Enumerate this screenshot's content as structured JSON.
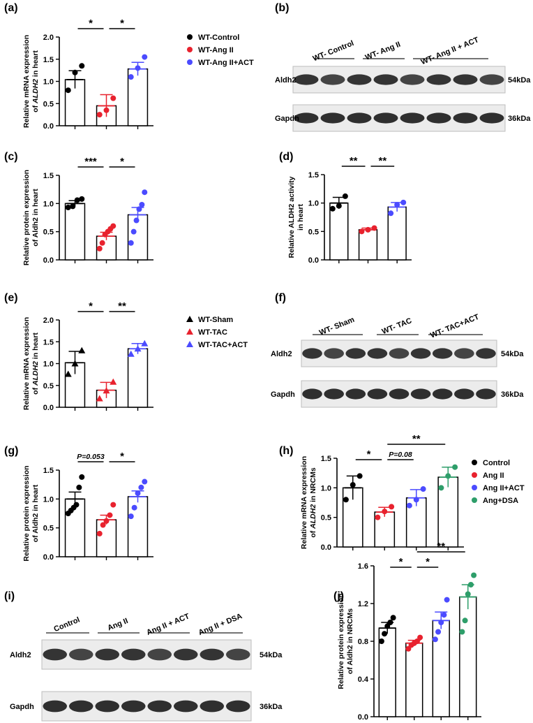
{
  "chart_data": [
    {
      "id": "a",
      "panel_label": "(a)",
      "type": "bar",
      "ylabel_lines": [
        [
          "Relative  mRNA expression",
          ""
        ],
        [
          "of ",
          "ALDH2",
          " in heart"
        ]
      ],
      "ylim": [
        0,
        2.0
      ],
      "yticks": [
        "0.0",
        "0.5",
        "1.0",
        "1.5",
        "2.0"
      ],
      "series": [
        {
          "name": "WT-Control",
          "color": "#000000",
          "marker": "circle",
          "mean": 1.04,
          "sem": 0.2,
          "points": [
            0.8,
            1.2,
            1.35
          ]
        },
        {
          "name": "WT-Ang II",
          "color": "#e8222e",
          "marker": "circle",
          "mean": 0.45,
          "sem": 0.25,
          "points": [
            0.25,
            0.35,
            0.62
          ]
        },
        {
          "name": "WT-Ang II+ACT",
          "color": "#4b4bff",
          "marker": "circle",
          "mean": 1.28,
          "sem": 0.15,
          "points": [
            1.1,
            1.3,
            1.55
          ]
        }
      ],
      "comparisons": [
        {
          "from": 0,
          "to": 1,
          "label": "*"
        },
        {
          "from": 1,
          "to": 2,
          "label": "*"
        }
      ]
    },
    {
      "id": "c",
      "panel_label": "(c)",
      "type": "bar",
      "ylabel_lines": [
        [
          "Relative  protein expression",
          ""
        ],
        [
          "of Aldh2 in heart",
          ""
        ]
      ],
      "ylim": [
        0,
        1.5
      ],
      "yticks": [
        "0.0",
        "0.5",
        "1.0",
        "1.5"
      ],
      "series": [
        {
          "name": "WT-Control",
          "color": "#000000",
          "marker": "circle",
          "mean": 1.0,
          "sem": 0.05,
          "points": [
            0.93,
            0.95,
            1.06,
            1.08
          ]
        },
        {
          "name": "WT-Ang II",
          "color": "#e8222e",
          "marker": "circle",
          "mean": 0.42,
          "sem": 0.07,
          "points": [
            0.2,
            0.3,
            0.45,
            0.5,
            0.55,
            0.6
          ]
        },
        {
          "name": "WT-Ang II+ACT",
          "color": "#4b4bff",
          "marker": "circle",
          "mean": 0.8,
          "sem": 0.13,
          "points": [
            0.3,
            0.5,
            0.7,
            0.9,
            0.98,
            1.2
          ]
        }
      ],
      "comparisons": [
        {
          "from": 0,
          "to": 1,
          "label": "***"
        },
        {
          "from": 1,
          "to": 2,
          "label": "*"
        }
      ]
    },
    {
      "id": "d",
      "panel_label": "(d)",
      "type": "bar",
      "ylabel_lines": [
        [
          "Relative ALDH2 activity",
          ""
        ],
        [
          "in heart",
          ""
        ]
      ],
      "ylim": [
        0,
        1.5
      ],
      "yticks": [
        "0.0",
        "0.5",
        "1.0",
        "1.5"
      ],
      "series": [
        {
          "name": "WT-Control",
          "color": "#000000",
          "marker": "circle",
          "mean": 1.0,
          "sem": 0.1,
          "points": [
            0.9,
            0.95,
            1.12
          ]
        },
        {
          "name": "WT-Ang II",
          "color": "#e8222e",
          "marker": "circle",
          "mean": 0.53,
          "sem": 0.03,
          "points": [
            0.5,
            0.53,
            0.56
          ]
        },
        {
          "name": "WT-Ang II+ACT",
          "color": "#4b4bff",
          "marker": "circle",
          "mean": 0.93,
          "sem": 0.08,
          "points": [
            0.82,
            0.97,
            1.01
          ]
        }
      ],
      "comparisons": [
        {
          "from": 0,
          "to": 1,
          "label": "**"
        },
        {
          "from": 1,
          "to": 2,
          "label": "**"
        }
      ]
    },
    {
      "id": "e",
      "panel_label": "(e)",
      "type": "bar",
      "ylabel_lines": [
        [
          "Relative mRNA expression",
          ""
        ],
        [
          "of ",
          "ALDH2",
          " in heart"
        ]
      ],
      "ylim": [
        0,
        2.0
      ],
      "yticks": [
        "0.0",
        "0.5",
        "1.0",
        "1.5",
        "2.0"
      ],
      "series": [
        {
          "name": "WT-Sham",
          "color": "#000000",
          "marker": "triangle",
          "mean": 1.02,
          "sem": 0.26,
          "points": [
            0.76,
            1.0,
            1.3
          ]
        },
        {
          "name": "WT-TAC",
          "color": "#e8222e",
          "marker": "triangle",
          "mean": 0.39,
          "sem": 0.18,
          "points": [
            0.2,
            0.38,
            0.58
          ]
        },
        {
          "name": "WT-TAC+ACT",
          "color": "#4b4bff",
          "marker": "triangle",
          "mean": 1.34,
          "sem": 0.12,
          "points": [
            1.22,
            1.34,
            1.46
          ]
        }
      ],
      "comparisons": [
        {
          "from": 0,
          "to": 1,
          "label": "*"
        },
        {
          "from": 1,
          "to": 2,
          "label": "**"
        }
      ]
    },
    {
      "id": "g",
      "panel_label": "(g)",
      "type": "bar",
      "ylabel_lines": [
        [
          "Relative  protein expression",
          ""
        ],
        [
          "of Aldh2 in heart",
          ""
        ]
      ],
      "ylim": [
        0,
        1.5
      ],
      "yticks": [
        "0.0",
        "0.5",
        "1.0",
        "1.5"
      ],
      "series": [
        {
          "name": "WT-Sham",
          "color": "#000000",
          "marker": "circle",
          "mean": 1.0,
          "sem": 0.12,
          "points": [
            0.75,
            0.8,
            0.85,
            0.9,
            1.2,
            1.38
          ]
        },
        {
          "name": "WT-TAC",
          "color": "#e8222e",
          "marker": "circle",
          "mean": 0.64,
          "sem": 0.08,
          "points": [
            0.4,
            0.55,
            0.62,
            0.72,
            0.9
          ]
        },
        {
          "name": "WT-TAC+ACT",
          "color": "#4b4bff",
          "marker": "circle",
          "mean": 1.04,
          "sem": 0.1,
          "points": [
            0.7,
            0.85,
            1.1,
            1.2,
            1.3
          ]
        }
      ],
      "comparisons": [
        {
          "from": 0,
          "to": 1,
          "label": "P=0.053",
          "italic": true
        },
        {
          "from": 1,
          "to": 2,
          "label": "*"
        }
      ]
    },
    {
      "id": "h",
      "panel_label": "(h)",
      "type": "bar",
      "ylabel_lines": [
        [
          "Relative mRNA expression",
          ""
        ],
        [
          "of ",
          "ALDH2",
          " in NRCMs"
        ]
      ],
      "ylim": [
        0,
        1.5
      ],
      "yticks": [
        "0.0",
        "0.5",
        "1.0",
        "1.5"
      ],
      "series": [
        {
          "name": "Control",
          "color": "#000000",
          "marker": "circle",
          "mean": 1.0,
          "sem": 0.2,
          "points": [
            0.8,
            1.05,
            1.2
          ]
        },
        {
          "name": "Ang II",
          "color": "#e8222e",
          "marker": "circle",
          "mean": 0.59,
          "sem": 0.08,
          "points": [
            0.5,
            0.6,
            0.68
          ]
        },
        {
          "name": "Ang II+ACT",
          "color": "#4b4bff",
          "marker": "circle",
          "mean": 0.83,
          "sem": 0.14,
          "points": [
            0.7,
            0.8,
            0.98
          ]
        },
        {
          "name": "Ang+DSA",
          "color": "#2e9e6a",
          "marker": "circle",
          "mean": 1.18,
          "sem": 0.17,
          "points": [
            1.0,
            1.2,
            1.35
          ]
        }
      ],
      "comparisons": [
        {
          "from": 0,
          "to": 1,
          "label": "*"
        },
        {
          "from": 1,
          "to": 2,
          "label": "P=0.08",
          "italic": true
        },
        {
          "from": 1,
          "to": 3,
          "label": "**"
        }
      ]
    },
    {
      "id": "j",
      "panel_label": "(j)",
      "type": "bar",
      "ylabel_lines": [
        [
          "Relative  protein expression",
          ""
        ],
        [
          "of Aldh2 in NRCMs",
          ""
        ]
      ],
      "ylim": [
        0,
        1.6
      ],
      "yticks": [
        "0.0",
        "0.4",
        "0.8",
        "1.2",
        "1.6"
      ],
      "series": [
        {
          "name": "Control",
          "color": "#000000",
          "marker": "circle",
          "mean": 0.94,
          "sem": 0.06,
          "points": [
            0.8,
            0.88,
            0.96,
            1.0,
            1.05
          ]
        },
        {
          "name": "Ang II",
          "color": "#e8222e",
          "marker": "circle",
          "mean": 0.78,
          "sem": 0.03,
          "points": [
            0.72,
            0.76,
            0.78,
            0.8,
            0.84
          ]
        },
        {
          "name": "Ang II+ACT",
          "color": "#4b4bff",
          "marker": "circle",
          "mean": 1.02,
          "sem": 0.09,
          "points": [
            0.82,
            0.9,
            1.0,
            1.08,
            1.24
          ]
        },
        {
          "name": "Ang+DSA",
          "color": "#2e9e6a",
          "marker": "circle",
          "mean": 1.27,
          "sem": 0.13,
          "points": [
            0.9,
            1.02,
            1.3,
            1.4,
            1.5
          ]
        }
      ],
      "comparisons": [
        {
          "from": 0,
          "to": 1,
          "label": "*"
        },
        {
          "from": 1,
          "to": 2,
          "label": "*"
        },
        {
          "from": 1,
          "to": 3,
          "label": "**"
        }
      ]
    }
  ],
  "legends": {
    "a": [
      {
        "label": "WT-Control",
        "color": "#000000",
        "marker": "circle"
      },
      {
        "label": "WT-Ang II",
        "color": "#e8222e",
        "marker": "circle"
      },
      {
        "label": "WT-Ang II+ACT",
        "color": "#4b4bff",
        "marker": "circle"
      }
    ],
    "e": [
      {
        "label": "WT-Sham",
        "color": "#000000",
        "marker": "triangle"
      },
      {
        "label": "WT-TAC",
        "color": "#e8222e",
        "marker": "triangle"
      },
      {
        "label": "WT-TAC+ACT",
        "color": "#4b4bff",
        "marker": "triangle"
      }
    ],
    "h": [
      {
        "label": "Control",
        "color": "#000000",
        "marker": "circle"
      },
      {
        "label": "Ang II",
        "color": "#e8222e",
        "marker": "circle"
      },
      {
        "label": "Ang II+ACT",
        "color": "#4b4bff",
        "marker": "circle"
      },
      {
        "label": "Ang+DSA",
        "color": "#2e9e6a",
        "marker": "circle"
      }
    ]
  },
  "blots": [
    {
      "id": "b",
      "panel_label": "(b)",
      "groups": [
        "WT- Control",
        "WT- Ang II",
        "WT- Ang II + ACT"
      ],
      "lane_counts": [
        2,
        2,
        4
      ],
      "rows": [
        {
          "label": "Aldh2",
          "size": "54kDa"
        },
        {
          "label": "Gapdh",
          "size": "36kDa"
        }
      ]
    },
    {
      "id": "f",
      "panel_label": "(f)",
      "groups": [
        "WT- Sham",
        "WT- TAC",
        "WT- TAC+ACT"
      ],
      "lane_counts": [
        3,
        3,
        3
      ],
      "rows": [
        {
          "label": "Aldh2",
          "size": "54kDa"
        },
        {
          "label": "Gapdh",
          "size": "36kDa"
        }
      ]
    },
    {
      "id": "i",
      "panel_label": "(i)",
      "groups": [
        "Control",
        "Ang II",
        "Ang II + ACT",
        "Ang II + DSA"
      ],
      "lane_counts": [
        2,
        2,
        2,
        2
      ],
      "rows": [
        {
          "label": "Aldh2",
          "size": "54kDa"
        },
        {
          "label": "Gapdh",
          "size": "36kDa"
        }
      ]
    }
  ]
}
